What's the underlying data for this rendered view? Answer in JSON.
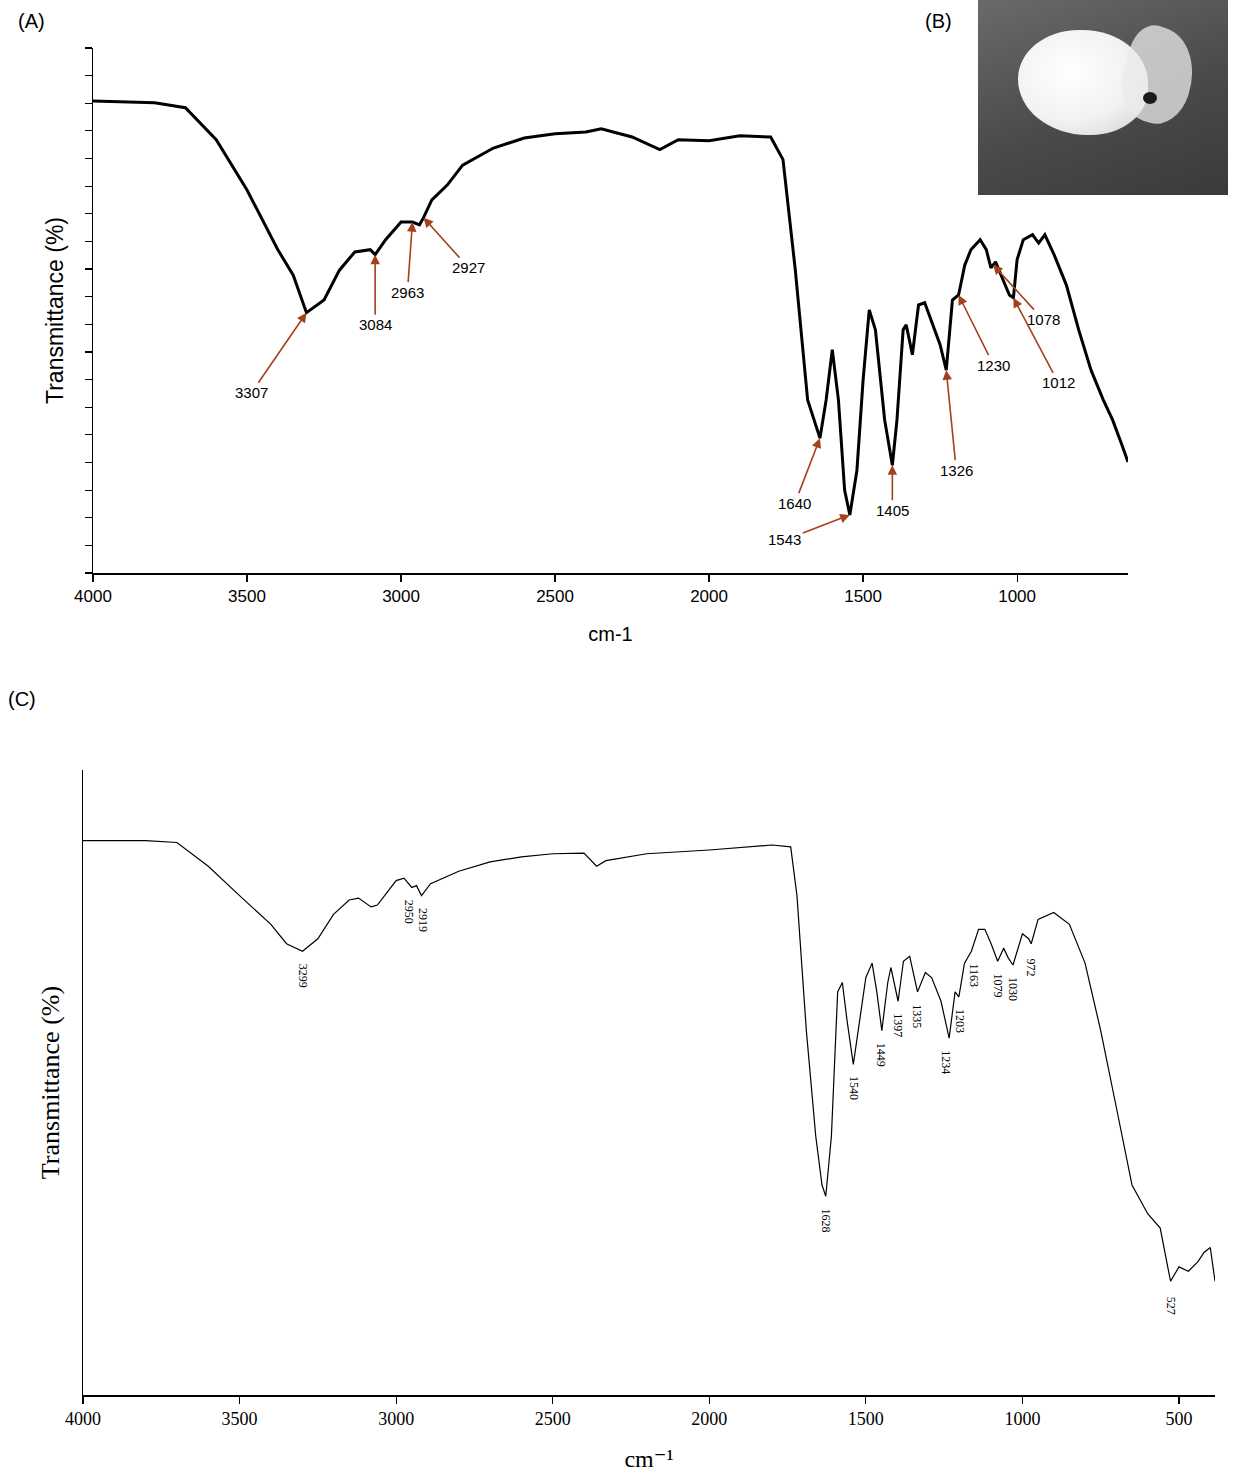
{
  "chart_data": [
    {
      "panel_label": "(A)",
      "type": "line",
      "x_label": "cm-1",
      "y_label": "Transmittance (%)",
      "x": [
        4000,
        3800,
        3700,
        3600,
        3500,
        3450,
        3400,
        3350,
        3307,
        3250,
        3200,
        3150,
        3100,
        3084,
        3050,
        3000,
        2963,
        2940,
        2927,
        2900,
        2850,
        2800,
        2700,
        2600,
        2500,
        2400,
        2350,
        2250,
        2160,
        2100,
        2000,
        1900,
        1800,
        1760,
        1720,
        1680,
        1640,
        1620,
        1600,
        1580,
        1560,
        1543,
        1520,
        1500,
        1480,
        1460,
        1430,
        1405,
        1390,
        1370,
        1360,
        1340,
        1320,
        1300,
        1280,
        1250,
        1230,
        1210,
        1190,
        1170,
        1150,
        1120,
        1100,
        1085,
        1070,
        1040,
        1025,
        1012,
        1000,
        980,
        950,
        930,
        910,
        880,
        840,
        800,
        760,
        720,
        690,
        660,
        640
      ],
      "values": [
        85.4,
        85.1,
        84.2,
        78.4,
        69.3,
        63.9,
        58.5,
        53.9,
        47.1,
        49.4,
        54.8,
        58.1,
        58.5,
        57.6,
        60.3,
        63.5,
        63.5,
        63.0,
        64.3,
        67.5,
        70.2,
        73.8,
        76.9,
        78.7,
        79.5,
        79.8,
        80.4,
        78.9,
        76.6,
        78.4,
        78.2,
        79.1,
        78.9,
        74.8,
        54.8,
        31.3,
        24.4,
        31.3,
        40.4,
        31.3,
        15.0,
        10.5,
        18.6,
        34.9,
        47.6,
        44.0,
        27.7,
        19.5,
        27.7,
        44.0,
        44.9,
        39.5,
        48.5,
        48.9,
        45.8,
        41.3,
        36.7,
        49.4,
        50.3,
        55.7,
        58.5,
        60.3,
        58.5,
        55.2,
        56.3,
        52.1,
        50.3,
        49.8,
        56.7,
        60.3,
        61.2,
        59.7,
        61.2,
        57.6,
        52.1,
        44.0,
        36.7,
        31.3,
        27.7,
        23.2,
        20.1
      ],
      "color": "#000000",
      "xlim": [
        4000,
        640
      ],
      "xticks": [
        4000,
        3500,
        3000,
        2500,
        2000,
        1500,
        1000
      ],
      "ylim": [
        0,
        95
      ],
      "yticks": [
        0,
        5,
        10,
        15,
        20,
        25,
        30,
        35,
        40,
        45,
        50,
        55,
        60,
        65,
        70,
        75,
        80,
        85,
        90,
        95
      ],
      "tick_labels": "x",
      "grid": false,
      "annotations": [
        {
          "text": "3307",
          "x": 3307,
          "y": 47.1
        },
        {
          "text": "3084",
          "x": 3084,
          "y": 57.6
        },
        {
          "text": "2963",
          "x": 2963,
          "y": 63.5
        },
        {
          "text": "2927",
          "x": 2927,
          "y": 64.3
        },
        {
          "text": "1640",
          "x": 1640,
          "y": 24.4
        },
        {
          "text": "1543",
          "x": 1543,
          "y": 10.5
        },
        {
          "text": "1405",
          "x": 1405,
          "y": 19.5
        },
        {
          "text": "1326",
          "x": 1230,
          "y": 36.7
        },
        {
          "text": "1230",
          "x": 1190,
          "y": 50.3
        },
        {
          "text": "1078",
          "x": 1078,
          "y": 55.8
        },
        {
          "text": "1012",
          "x": 1012,
          "y": 49.8
        }
      ]
    },
    {
      "panel_label": "(C)",
      "type": "line",
      "x_label": "cm⁻¹",
      "y_label": "Transmittance (%)",
      "x": [
        4000,
        3800,
        3700,
        3600,
        3500,
        3400,
        3350,
        3299,
        3250,
        3200,
        3150,
        3120,
        3080,
        3060,
        3000,
        2975,
        2950,
        2935,
        2919,
        2890,
        2800,
        2700,
        2600,
        2500,
        2400,
        2360,
        2330,
        2200,
        2000,
        1800,
        1740,
        1720,
        1690,
        1660,
        1640,
        1628,
        1610,
        1590,
        1575,
        1560,
        1540,
        1520,
        1500,
        1480,
        1465,
        1449,
        1430,
        1420,
        1397,
        1380,
        1360,
        1335,
        1310,
        1290,
        1260,
        1234,
        1215,
        1203,
        1185,
        1163,
        1140,
        1120,
        1100,
        1079,
        1060,
        1045,
        1030,
        1000,
        980,
        972,
        950,
        900,
        850,
        800,
        750,
        700,
        650,
        600,
        560,
        527,
        500,
        470,
        440,
        420,
        400,
        385
      ],
      "values": [
        88.7,
        88.7,
        88.4,
        84.6,
        79.9,
        75.3,
        72.2,
        71.0,
        73.0,
        76.9,
        79.2,
        79.5,
        78.1,
        78.4,
        82.3,
        82.7,
        81.2,
        81.5,
        79.9,
        81.8,
        83.8,
        85.3,
        86.1,
        86.6,
        86.7,
        84.6,
        85.5,
        86.6,
        87.2,
        88.0,
        87.7,
        79.9,
        58.3,
        41.4,
        33.6,
        31.8,
        41.4,
        64.5,
        66.0,
        59.9,
        52.9,
        59.9,
        66.8,
        69.1,
        64.5,
        58.3,
        66.0,
        68.4,
        63.0,
        69.4,
        70.2,
        64.5,
        67.6,
        66.8,
        63.0,
        57.1,
        64.5,
        63.7,
        69.1,
        71.0,
        74.5,
        74.5,
        72.2,
        69.4,
        71.5,
        69.9,
        68.8,
        73.8,
        73.0,
        72.2,
        76.1,
        77.2,
        75.3,
        69.1,
        58.3,
        46.0,
        33.6,
        29.0,
        26.7,
        18.2,
        20.5,
        19.8,
        21.3,
        22.8,
        23.6,
        18.2
      ],
      "color": "#000000",
      "xlim": [
        4000,
        385
      ],
      "xticks": [
        4000,
        3500,
        3000,
        2500,
        2000,
        1500,
        1000,
        500
      ],
      "ylim": [
        0,
        100
      ],
      "tick_labels": "x",
      "grid": false,
      "annotations": [
        {
          "text": "3299",
          "x": 3299,
          "y": 71.0
        },
        {
          "text": "2950",
          "x": 2950,
          "y": 81.2
        },
        {
          "text": "2919",
          "x": 2919,
          "y": 79.9
        },
        {
          "text": "1628",
          "x": 1628,
          "y": 31.8
        },
        {
          "text": "1540",
          "x": 1540,
          "y": 52.9
        },
        {
          "text": "1449",
          "x": 1449,
          "y": 58.3
        },
        {
          "text": "1397",
          "x": 1397,
          "y": 63.0
        },
        {
          "text": "1335",
          "x": 1335,
          "y": 64.5
        },
        {
          "text": "1234",
          "x": 1234,
          "y": 57.1
        },
        {
          "text": "1203",
          "x": 1203,
          "y": 63.7
        },
        {
          "text": "1163",
          "x": 1163,
          "y": 71.0
        },
        {
          "text": "1079",
          "x": 1079,
          "y": 69.4
        },
        {
          "text": "1030",
          "x": 1030,
          "y": 68.8
        },
        {
          "text": "972",
          "x": 972,
          "y": 72.2
        },
        {
          "text": "527",
          "x": 527,
          "y": 18.2
        }
      ]
    }
  ],
  "photo": {
    "panel_label": "(B)"
  }
}
